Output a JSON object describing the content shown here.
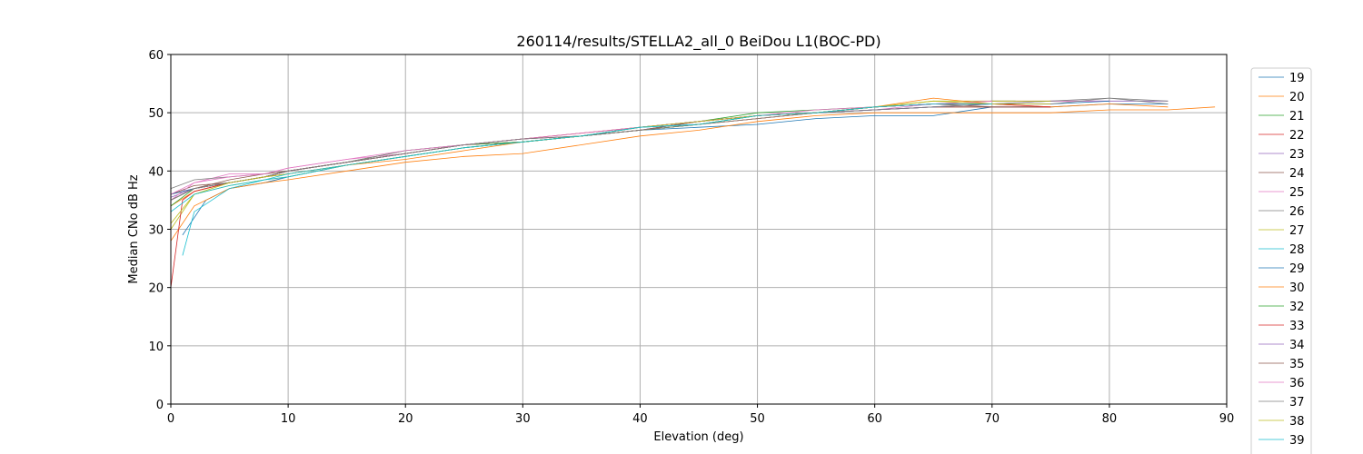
{
  "chart_data": {
    "type": "line",
    "title": "260114/results/STELLA2_all_0 BeiDou L1(BOC-PD)",
    "xlabel": "Elevation (deg)",
    "ylabel": "Median CNo dB Hz",
    "xlim": [
      0,
      90
    ],
    "ylim": [
      0,
      60
    ],
    "xticks": [
      "0",
      "10",
      "20",
      "30",
      "40",
      "50",
      "60",
      "70",
      "80",
      "90"
    ],
    "yticks": [
      "0",
      "10",
      "20",
      "30",
      "40",
      "50",
      "60"
    ],
    "grid": true,
    "legend_position": "right",
    "series": [
      {
        "name": "19",
        "color": "#1f77b4",
        "x": [
          1,
          3,
          5,
          8,
          10,
          15,
          20,
          25,
          30,
          35,
          40,
          45,
          50,
          55,
          60,
          65,
          70,
          75,
          80,
          85
        ],
        "y": [
          29,
          35,
          37,
          38,
          39,
          41,
          42.5,
          44,
          45,
          46,
          47,
          47.5,
          48,
          49,
          49.5,
          49.5,
          51,
          51,
          51.5,
          51.5
        ]
      },
      {
        "name": "20",
        "color": "#ff7f0e",
        "x": [
          0,
          2,
          5,
          8,
          10,
          15,
          20,
          25,
          30,
          35,
          40,
          45,
          50,
          55,
          60,
          65,
          70,
          75,
          80,
          85,
          89
        ],
        "y": [
          28,
          34,
          37,
          38,
          38.5,
          40,
          41.5,
          42.5,
          43,
          44.5,
          46,
          47,
          48.5,
          49.5,
          50,
          50,
          50,
          50,
          50.5,
          50.5,
          51
        ]
      },
      {
        "name": "21",
        "color": "#2ca02c",
        "x": [
          0,
          2,
          5,
          8,
          10,
          15,
          20,
          25,
          30,
          35,
          40,
          45,
          50,
          55,
          60,
          65,
          70,
          72
        ],
        "y": [
          35,
          37,
          38,
          39,
          40,
          41.5,
          43.5,
          44.5,
          45,
          46,
          47.5,
          48.5,
          50,
          50.5,
          51,
          51.5,
          52,
          52
        ]
      },
      {
        "name": "22",
        "color": "#d62728",
        "x": [
          0,
          2,
          5,
          8,
          10,
          15,
          20,
          25,
          30,
          35,
          40,
          45,
          50,
          55,
          60,
          65,
          70,
          75
        ],
        "y": [
          36,
          37,
          38,
          39,
          40,
          41.5,
          43,
          44.5,
          45,
          46,
          47,
          48,
          49,
          50,
          50.5,
          51,
          51,
          51
        ]
      },
      {
        "name": "23",
        "color": "#9467bd",
        "x": [
          0,
          2,
          5,
          8,
          10,
          15,
          20,
          25,
          30,
          35,
          40,
          45,
          50,
          55,
          60,
          65,
          70,
          75,
          80,
          85
        ],
        "y": [
          35.5,
          37,
          38,
          39,
          40,
          41.5,
          43,
          44.5,
          45.5,
          46,
          47,
          48,
          49,
          50,
          51,
          51.5,
          51.5,
          52,
          52,
          52
        ]
      },
      {
        "name": "24",
        "color": "#8c564b",
        "x": [
          0,
          2,
          5,
          8,
          10,
          15,
          20,
          25,
          30,
          35,
          40,
          45,
          50,
          55,
          60,
          65,
          70,
          75
        ],
        "y": [
          36,
          37.5,
          38,
          39,
          40,
          41.5,
          43,
          44.5,
          45,
          46,
          47,
          48.5,
          49.5,
          50,
          50.5,
          51,
          51,
          51
        ]
      },
      {
        "name": "25",
        "color": "#e377c2",
        "x": [
          0,
          2,
          5,
          8,
          10,
          15,
          20,
          25,
          30,
          35,
          40,
          45,
          50,
          55,
          60,
          65,
          70,
          75,
          80
        ],
        "y": [
          35,
          38,
          39.5,
          39.5,
          40.5,
          42,
          43,
          44.5,
          45,
          46,
          47.5,
          48.5,
          49.5,
          50,
          50.5,
          51.5,
          52,
          52,
          52
        ]
      },
      {
        "name": "26",
        "color": "#7f7f7f",
        "x": [
          0,
          2,
          5,
          8,
          10,
          15,
          20,
          25,
          30,
          35,
          40,
          45,
          50,
          55,
          60,
          65,
          70,
          75,
          80,
          85
        ],
        "y": [
          37,
          38.5,
          39,
          39.5,
          40,
          41.5,
          43.5,
          44.5,
          45.5,
          46.5,
          47.5,
          48.5,
          49.5,
          50,
          51,
          51.5,
          51.5,
          52,
          52.5,
          52
        ]
      },
      {
        "name": "27",
        "color": "#bcbd22",
        "x": [
          0,
          2,
          5,
          8,
          10,
          15,
          20,
          25,
          30,
          35,
          40,
          45,
          50,
          55,
          60,
          65,
          70,
          75
        ],
        "y": [
          30,
          36,
          37.5,
          38.5,
          39,
          41,
          42.5,
          44,
          45,
          46,
          47,
          48,
          49.5,
          50,
          51,
          52,
          52,
          52
        ]
      },
      {
        "name": "28",
        "color": "#17becf",
        "x": [
          1,
          2,
          5,
          8,
          10,
          15,
          20,
          25,
          30,
          35,
          40,
          45,
          50,
          55,
          60,
          65,
          70
        ],
        "y": [
          25.5,
          33,
          37,
          38.5,
          39,
          41,
          42.5,
          44,
          45,
          46,
          47.5,
          48,
          49.5,
          50,
          51,
          51.5,
          51.5
        ]
      },
      {
        "name": "29",
        "color": "#1f77b4",
        "x": [
          0,
          2,
          5,
          8,
          10,
          15,
          20,
          25,
          30,
          35,
          40,
          45,
          50,
          55,
          60,
          65,
          70,
          75,
          80
        ],
        "y": [
          36,
          37,
          38,
          39,
          39.5,
          41,
          42.5,
          44,
          45,
          46,
          47.5,
          48.5,
          49.5,
          50,
          50.5,
          51,
          51.5,
          51.5,
          52
        ]
      },
      {
        "name": "30",
        "color": "#ff7f0e",
        "x": [
          0,
          2,
          5,
          8,
          10,
          15,
          20,
          25,
          30,
          35,
          40,
          45,
          50,
          55,
          60,
          65,
          70,
          75,
          80,
          85
        ],
        "y": [
          34,
          36.5,
          38,
          39,
          39.5,
          41,
          42,
          43.5,
          45,
          46,
          47,
          48,
          49,
          50,
          51,
          52.5,
          51.5,
          51,
          51.5,
          51
        ]
      },
      {
        "name": "32",
        "color": "#2ca02c",
        "x": [
          0,
          2,
          5,
          8,
          10,
          15,
          20,
          25,
          30,
          35,
          40,
          45,
          50,
          55,
          60,
          65,
          70
        ],
        "y": [
          34,
          37,
          38,
          39,
          40,
          41.5,
          43,
          44.5,
          45,
          46,
          47,
          48,
          49.5,
          50,
          51,
          51.5,
          51.5
        ]
      },
      {
        "name": "33",
        "color": "#d62728",
        "x": [
          0,
          1,
          2,
          5,
          8,
          10,
          15,
          20,
          25,
          30,
          35,
          40,
          45,
          50,
          55,
          60,
          65,
          70,
          75
        ],
        "y": [
          20,
          35,
          36.5,
          38,
          39,
          40,
          41.5,
          43,
          44.5,
          45.5,
          46.5,
          47.5,
          48.5,
          49.5,
          50,
          51,
          51.5,
          51.5,
          51
        ]
      },
      {
        "name": "34",
        "color": "#9467bd",
        "x": [
          0,
          2,
          5,
          8,
          10,
          15,
          20,
          25,
          30,
          35,
          40,
          45,
          50,
          55,
          60,
          65,
          70,
          75
        ],
        "y": [
          35,
          37,
          38,
          39,
          40,
          41.5,
          43,
          44.5,
          45.5,
          46,
          47,
          48.5,
          49.5,
          50,
          50.5,
          51,
          51.5,
          51.5
        ]
      },
      {
        "name": "35",
        "color": "#8c564b",
        "x": [
          0,
          2,
          5,
          8,
          10,
          15,
          20,
          25,
          30,
          35,
          40,
          45,
          50,
          55,
          60,
          65,
          70
        ],
        "y": [
          35,
          37,
          38.5,
          39.5,
          40,
          41.5,
          43,
          44.5,
          45.5,
          46,
          47,
          48.5,
          49.5,
          50,
          51,
          51.5,
          51
        ]
      },
      {
        "name": "36",
        "color": "#e377c2",
        "x": [
          0,
          2,
          5,
          8,
          10,
          15,
          20,
          25,
          30,
          35,
          40,
          45,
          50,
          55,
          60,
          65,
          70
        ],
        "y": [
          36,
          38,
          39,
          39.5,
          40.5,
          42,
          43.5,
          44.5,
          45.5,
          46.5,
          47.5,
          48.5,
          49.5,
          50.5,
          51,
          51.5,
          52
        ]
      },
      {
        "name": "37",
        "color": "#7f7f7f",
        "x": [
          0,
          2,
          5,
          8,
          10,
          15,
          20,
          25,
          30,
          35,
          40,
          45,
          50,
          55,
          60,
          65,
          70,
          75,
          80,
          85
        ],
        "y": [
          35,
          37,
          38,
          39,
          40,
          41.5,
          43,
          44.5,
          45.5,
          46,
          47,
          48,
          49,
          50,
          50.5,
          51,
          51.5,
          51.5,
          52.5,
          51.5
        ]
      },
      {
        "name": "38",
        "color": "#bcbd22",
        "x": [
          0,
          2,
          5,
          8,
          10,
          15,
          20,
          25,
          30,
          35,
          40,
          45,
          50,
          55,
          60,
          65,
          70,
          75
        ],
        "y": [
          31,
          36,
          38,
          39,
          39.5,
          41,
          42.5,
          44,
          45,
          46,
          47.5,
          48.5,
          49.5,
          50,
          51,
          52,
          51.5,
          51.5
        ]
      },
      {
        "name": "39",
        "color": "#17becf",
        "x": [
          0,
          2,
          5,
          8,
          10,
          15,
          20,
          25,
          30,
          35,
          40,
          45,
          50,
          55,
          60,
          65,
          70
        ],
        "y": [
          33,
          36,
          37.5,
          38.5,
          39.5,
          41,
          42.5,
          44,
          45,
          46,
          47.5,
          48,
          49.5,
          50,
          51,
          51.5,
          51.5
        ]
      }
    ]
  }
}
